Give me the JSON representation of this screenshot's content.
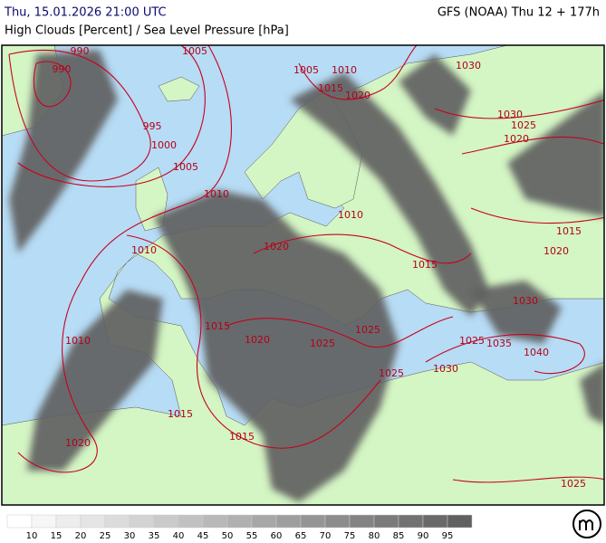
{
  "header": {
    "valid_time": "Thu, 15.01.2026 21:00 UTC",
    "model_run": "GFS (NOAA) Thu 12 + 177h",
    "title": "High Clouds [Percent] / Sea Level Pressure [hPa]"
  },
  "isobar_labels": [
    990,
    990,
    1005,
    1005,
    1010,
    1015,
    1020,
    1030,
    995,
    1000,
    1005,
    1010,
    1030,
    1025,
    1020,
    1010,
    1020,
    1015,
    1015,
    1020,
    1010,
    1030,
    1015,
    1025,
    1010,
    1020,
    1025,
    1025,
    1035,
    1040,
    1025,
    1030,
    1015,
    1015,
    1020,
    1025
  ],
  "legend": {
    "labels": [
      10,
      15,
      20,
      25,
      30,
      35,
      40,
      45,
      50,
      55,
      60,
      65,
      70,
      75,
      80,
      85,
      90,
      95
    ]
  }
}
